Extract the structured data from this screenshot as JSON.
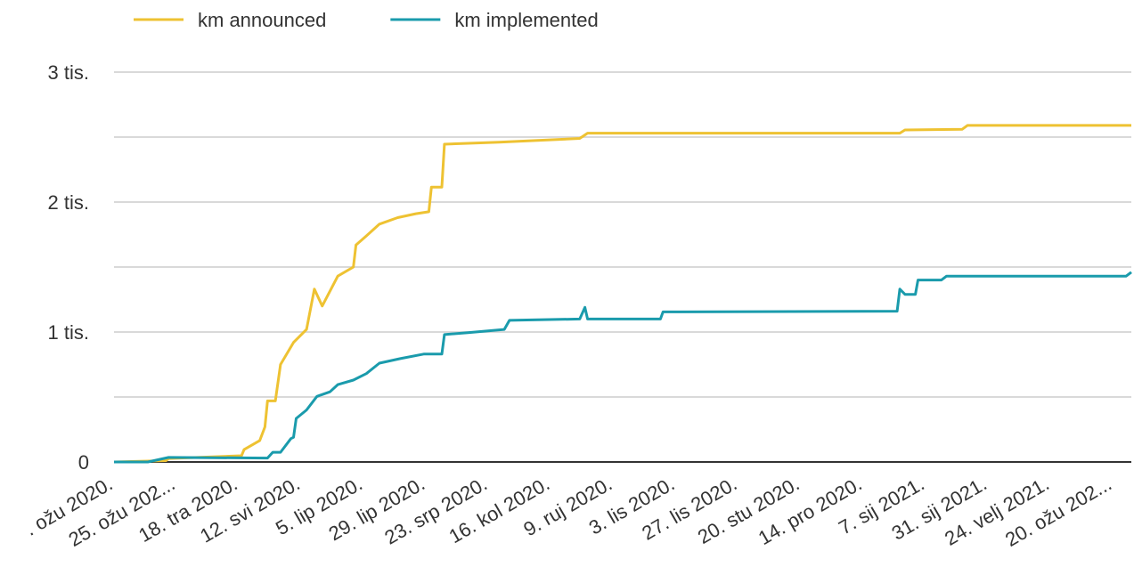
{
  "chart_data": {
    "type": "line",
    "xlim": [
      "2020-03-01",
      "2021-03-27"
    ],
    "xticks": [
      {
        "value": "2020-03-01",
        "label": ". ožu 2020."
      },
      {
        "value": "2020-03-25",
        "label": "25. ožu 202..."
      },
      {
        "value": "2020-04-18",
        "label": "18. tra 2020."
      },
      {
        "value": "2020-05-12",
        "label": "12. svi 2020."
      },
      {
        "value": "2020-06-05",
        "label": "5. lip 2020."
      },
      {
        "value": "2020-06-29",
        "label": "29. lip 2020."
      },
      {
        "value": "2020-07-23",
        "label": "23. srp 2020."
      },
      {
        "value": "2020-08-16",
        "label": "16. kol 2020."
      },
      {
        "value": "2020-09-09",
        "label": "9. ruj 2020."
      },
      {
        "value": "2020-10-03",
        "label": "3. lis 2020."
      },
      {
        "value": "2020-10-27",
        "label": "27. lis 2020."
      },
      {
        "value": "2020-11-20",
        "label": "20. stu 2020."
      },
      {
        "value": "2020-12-14",
        "label": "14. pro 2020."
      },
      {
        "value": "2021-01-07",
        "label": "7. sij 2021."
      },
      {
        "value": "2021-01-31",
        "label": "31. sij 2021."
      },
      {
        "value": "2021-02-24",
        "label": "24. velj 2021."
      },
      {
        "value": "2021-03-20",
        "label": "20. ožu 202..."
      }
    ],
    "ylim": [
      0,
      3000
    ],
    "yticks": [
      0,
      {
        "value": 1000,
        "label": "1 tis."
      },
      {
        "value": 2000,
        "label": "2 tis."
      },
      {
        "value": 3000,
        "label": "3 tis."
      }
    ],
    "minor_yticks": [
      500,
      1500,
      2500
    ],
    "grid": true,
    "legend": "top",
    "series": [
      {
        "name": "km announced",
        "color": "#eec232",
        "x": [
          "2020-03-01",
          "2020-03-21",
          "2020-03-22",
          "2020-04-19",
          "2020-04-20",
          "2020-04-26",
          "2020-04-28",
          "2020-04-29",
          "2020-05-02",
          "2020-05-04",
          "2020-05-09",
          "2020-05-14",
          "2020-05-17",
          "2020-05-20",
          "2020-05-26",
          "2020-06-01",
          "2020-06-02",
          "2020-06-06",
          "2020-06-11",
          "2020-06-18",
          "2020-06-25",
          "2020-06-30",
          "2020-07-01",
          "2020-07-05",
          "2020-07-06",
          "2020-07-27",
          "2020-08-27",
          "2020-08-30",
          "2020-12-28",
          "2020-12-30",
          "2021-01-21",
          "2021-01-23",
          "2021-03-27"
        ],
        "values": [
          0,
          10,
          27,
          48,
          95,
          165,
          270,
          470,
          470,
          750,
          920,
          1020,
          1330,
          1200,
          1430,
          1500,
          1670,
          1740,
          1830,
          1880,
          1910,
          1925,
          2115,
          2115,
          2445,
          2460,
          2490,
          2530,
          2530,
          2555,
          2560,
          2590,
          2590
        ]
      },
      {
        "name": "km implemented",
        "color": "#1a9bac",
        "x": [
          "2020-03-01",
          "2020-03-14",
          "2020-03-22",
          "2020-04-29",
          "2020-05-01",
          "2020-05-04",
          "2020-05-08",
          "2020-05-09",
          "2020-05-10",
          "2020-05-14",
          "2020-05-18",
          "2020-05-23",
          "2020-05-26",
          "2020-06-01",
          "2020-06-06",
          "2020-06-11",
          "2020-06-19",
          "2020-06-28",
          "2020-07-05",
          "2020-07-06",
          "2020-07-15",
          "2020-07-29",
          "2020-07-31",
          "2020-08-27",
          "2020-08-29",
          "2020-08-30",
          "2020-09-27",
          "2020-09-28",
          "2020-12-27",
          "2020-12-28",
          "2020-12-30",
          "2021-01-03",
          "2021-01-04",
          "2021-01-13",
          "2021-01-15",
          "2021-03-25",
          "2021-03-27"
        ],
        "values": [
          0,
          0,
          35,
          30,
          75,
          75,
          180,
          190,
          335,
          400,
          505,
          540,
          595,
          630,
          680,
          760,
          795,
          830,
          830,
          980,
          995,
          1020,
          1090,
          1100,
          1190,
          1100,
          1100,
          1155,
          1160,
          1330,
          1290,
          1290,
          1400,
          1400,
          1430,
          1430,
          1460
        ]
      }
    ]
  }
}
